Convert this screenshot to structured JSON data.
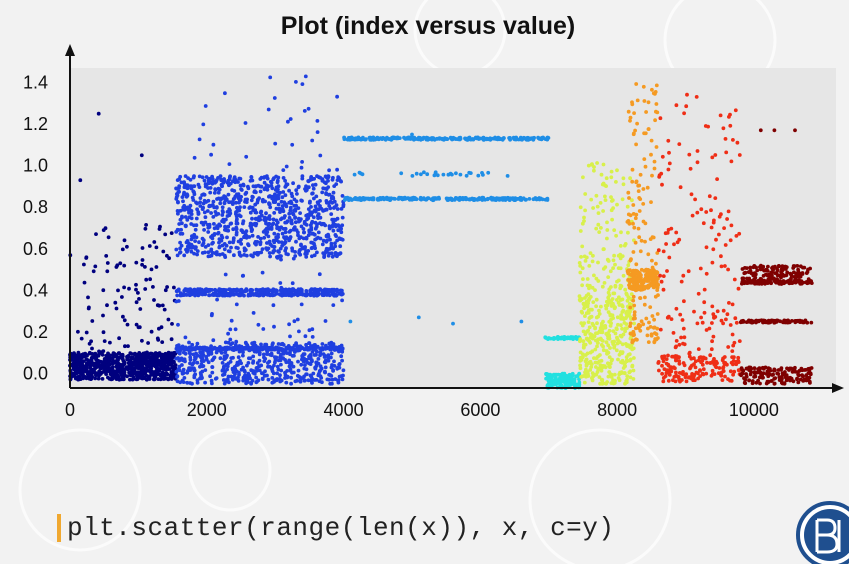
{
  "slide": {
    "code_snippet": "plt.scatter(range(len(x)), x, c=y)"
  },
  "colors": {
    "background": "#f2f2f2",
    "plot_background": "#e6e6e6",
    "code_accent": "#f0a830",
    "logo": "#1f4f8f"
  },
  "chart_data": {
    "type": "scatter",
    "title": "Plot (index versus value)",
    "xlabel": "",
    "ylabel": "",
    "xlim": [
      0,
      11200
    ],
    "ylim": [
      -0.07,
      1.47
    ],
    "xticks": [
      0,
      2000,
      4000,
      6000,
      8000,
      10000
    ],
    "yticks": [
      0.0,
      0.2,
      0.4,
      0.6,
      0.8,
      1.0,
      1.2,
      1.4
    ],
    "xtick_labels": [
      "0",
      "2000",
      "4000",
      "6000",
      "8000",
      "10000"
    ],
    "ytick_labels": [
      "0.0",
      "0.2",
      "0.4",
      "0.6",
      "0.8",
      "1.0",
      "1.2",
      "1.4"
    ],
    "grid": false,
    "colormap": "jet",
    "color_by": "class label y",
    "groups": [
      {
        "x_range": [
          0,
          1550
        ],
        "color": "#00007f",
        "base_band": [
          -0.03,
          0.1
        ],
        "scatter_range": [
          0.0,
          0.72
        ],
        "outliers": [
          [
            420,
            1.25
          ],
          [
            1050,
            1.05
          ],
          [
            150,
            0.93
          ]
        ]
      },
      {
        "x_range": [
          1550,
          4000
        ],
        "color": "#1f3fe0",
        "bands": [
          [
            -0.05,
            0.15
          ],
          [
            0.56,
            0.95
          ]
        ],
        "lines": [
          0.12,
          0.38,
          0.4
        ],
        "scatter_range": [
          -0.05,
          1.43
        ]
      },
      {
        "x_range": [
          4000,
          7000
        ],
        "color": "#1f8ee6",
        "lines": [
          0.84,
          1.13
        ],
        "sparse_line": 0.96,
        "outliers": [
          [
            4100,
            0.25
          ],
          [
            5100,
            0.27
          ],
          [
            5600,
            0.24
          ],
          [
            6600,
            0.25
          ],
          [
            5000,
            1.15
          ]
        ]
      },
      {
        "x_range": [
          6950,
          7450
        ],
        "color": "#22e0e0",
        "bands": [
          [
            -0.07,
            0.0
          ]
        ],
        "lines": [
          0.17
        ]
      },
      {
        "x_range": [
          7450,
          8250
        ],
        "color": "#d8f04a",
        "bands": [
          [
            -0.05,
            0.35
          ]
        ],
        "scatter_range": [
          0.35,
          1.02
        ]
      },
      {
        "x_range": [
          8150,
          8600
        ],
        "color": "#f59a22",
        "bands": [
          [
            0.4,
            0.5
          ]
        ],
        "scatter_range": [
          0.15,
          1.4
        ]
      },
      {
        "x_range": [
          8600,
          9800
        ],
        "color": "#ef2e16",
        "bands": [
          [
            -0.04,
            0.08
          ]
        ],
        "scatter_range": [
          0.08,
          1.35
        ]
      },
      {
        "x_range": [
          9800,
          10850
        ],
        "color": "#7f0000",
        "bands": [
          [
            -0.05,
            0.03
          ],
          [
            0.43,
            0.52
          ]
        ],
        "lines": [
          0.25,
          0.44
        ],
        "outliers": [
          [
            10100,
            1.17
          ],
          [
            10300,
            1.17
          ],
          [
            10600,
            1.17
          ]
        ]
      }
    ]
  }
}
